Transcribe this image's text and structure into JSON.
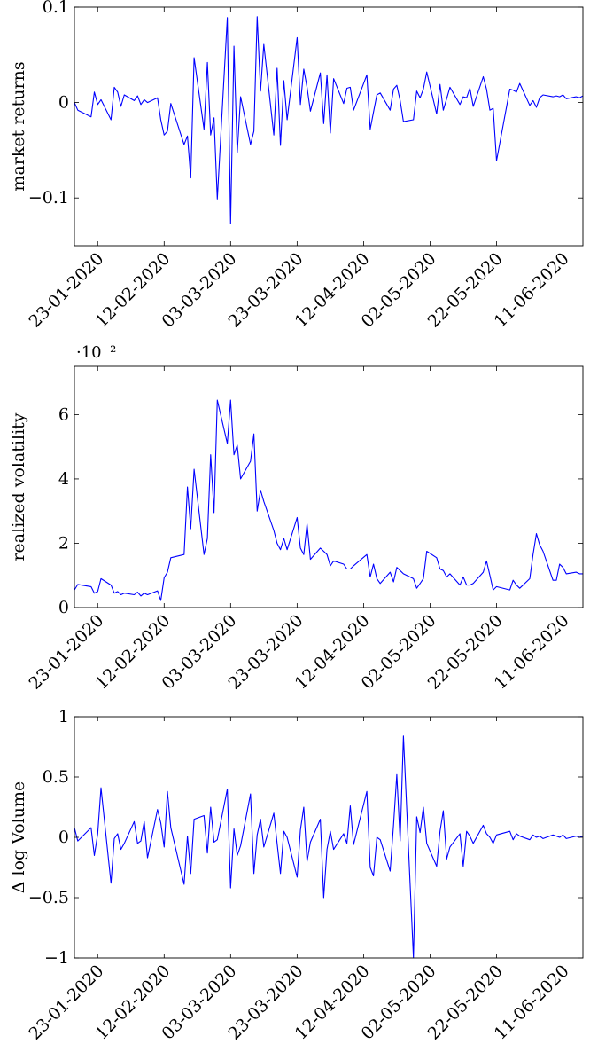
{
  "chart_data": [
    {
      "type": "line",
      "ylabel": "market returns",
      "y_scale_note": "",
      "ylim": [
        -0.15,
        0.1
      ],
      "yticks": [
        -0.1,
        0,
        0.1
      ],
      "ytick_labels": [
        "−0.1",
        "0",
        "0.1"
      ],
      "xlim": [
        "2020-01-16",
        "2020-06-17"
      ],
      "xticks": [
        "2020-01-23",
        "2020-02-12",
        "2020-03-03",
        "2020-03-23",
        "2020-04-12",
        "2020-05-02",
        "2020-05-22",
        "2020-06-11"
      ],
      "xtick_labels": [
        "23-01-2020",
        "12-02-2020",
        "03-03-2020",
        "23-03-2020",
        "12-04-2020",
        "02-05-2020",
        "22-05-2020",
        "11-06-2020"
      ],
      "grid": false,
      "line_color": "#0000ff",
      "series": [
        {
          "x": [
            "2020-01-16",
            "2020-01-17",
            "2020-01-21",
            "2020-01-22",
            "2020-01-23",
            "2020-01-24",
            "2020-01-27",
            "2020-01-28",
            "2020-01-29",
            "2020-01-30",
            "2020-01-31",
            "2020-02-03",
            "2020-02-04",
            "2020-02-05",
            "2020-02-06",
            "2020-02-07",
            "2020-02-10",
            "2020-02-11",
            "2020-02-12",
            "2020-02-13",
            "2020-02-14",
            "2020-02-18",
            "2020-02-19",
            "2020-02-20",
            "2020-02-21",
            "2020-02-24",
            "2020-02-25",
            "2020-02-26",
            "2020-02-27",
            "2020-02-28",
            "2020-03-02",
            "2020-03-03",
            "2020-03-04",
            "2020-03-05",
            "2020-03-06",
            "2020-03-09",
            "2020-03-10",
            "2020-03-11",
            "2020-03-12",
            "2020-03-13",
            "2020-03-16",
            "2020-03-17",
            "2020-03-18",
            "2020-03-19",
            "2020-03-20",
            "2020-03-23",
            "2020-03-24",
            "2020-03-25",
            "2020-03-26",
            "2020-03-27",
            "2020-03-30",
            "2020-03-31",
            "2020-04-01",
            "2020-04-02",
            "2020-04-03",
            "2020-04-06",
            "2020-04-07",
            "2020-04-08",
            "2020-04-09",
            "2020-04-13",
            "2020-04-14",
            "2020-04-15",
            "2020-04-16",
            "2020-04-17",
            "2020-04-20",
            "2020-04-21",
            "2020-04-22",
            "2020-04-23",
            "2020-04-24",
            "2020-04-27",
            "2020-04-28",
            "2020-04-29",
            "2020-04-30",
            "2020-05-01",
            "2020-05-04",
            "2020-05-05",
            "2020-05-06",
            "2020-05-07",
            "2020-05-08",
            "2020-05-11",
            "2020-05-12",
            "2020-05-13",
            "2020-05-14",
            "2020-05-15",
            "2020-05-18",
            "2020-05-19",
            "2020-05-20",
            "2020-05-21",
            "2020-05-22",
            "2020-05-26",
            "2020-05-27",
            "2020-05-28",
            "2020-05-29",
            "2020-06-01",
            "2020-06-02",
            "2020-06-03",
            "2020-06-04",
            "2020-06-05",
            "2020-06-08",
            "2020-06-09",
            "2020-06-10",
            "2020-06-11",
            "2020-06-12",
            "2020-06-15",
            "2020-06-16",
            "2020-06-17"
          ],
          "y": [
            0.0,
            -0.008,
            -0.015,
            0.011,
            -0.002,
            0.003,
            -0.018,
            0.016,
            0.011,
            -0.004,
            0.008,
            0.002,
            0.007,
            -0.002,
            0.003,
            0.0,
            0.005,
            -0.018,
            -0.034,
            -0.03,
            -0.001,
            -0.044,
            -0.035,
            -0.079,
            0.047,
            -0.028,
            0.042,
            -0.034,
            -0.016,
            -0.101,
            0.089,
            -0.127,
            0.059,
            -0.053,
            0.006,
            -0.044,
            -0.03,
            0.09,
            0.012,
            0.061,
            -0.034,
            0.036,
            -0.045,
            0.023,
            -0.018,
            0.068,
            -0.002,
            0.035,
            0.016,
            -0.009,
            0.031,
            -0.022,
            0.029,
            -0.032,
            0.025,
            -0.001,
            0.015,
            0.016,
            -0.008,
            0.029,
            -0.028,
            -0.01,
            0.008,
            0.01,
            -0.008,
            0.014,
            0.018,
            0.002,
            -0.02,
            -0.018,
            0.012,
            0.005,
            0.014,
            0.032,
            -0.012,
            0.019,
            -0.008,
            0.004,
            0.016,
            -0.002,
            0.006,
            0.005,
            0.015,
            -0.004,
            0.027,
            0.014,
            -0.008,
            -0.006,
            -0.061,
            0.014,
            0.013,
            0.011,
            0.02,
            -0.003,
            0.002,
            -0.005,
            0.005,
            0.008,
            0.006,
            0.007,
            0.006,
            0.008,
            0.004,
            0.006,
            0.005,
            0.007
          ]
        }
      ]
    },
    {
      "type": "line",
      "ylabel": "realized volatility",
      "y_scale_note": "·10⁻²",
      "ylim": [
        0,
        7.5
      ],
      "yticks": [
        0,
        2,
        4,
        6
      ],
      "ytick_labels": [
        "0",
        "2",
        "4",
        "6"
      ],
      "xlim": [
        "2020-01-16",
        "2020-06-17"
      ],
      "xticks": [
        "2020-01-23",
        "2020-02-12",
        "2020-03-03",
        "2020-03-23",
        "2020-04-12",
        "2020-05-02",
        "2020-05-22",
        "2020-06-11"
      ],
      "xtick_labels": [
        "23-01-2020",
        "12-02-2020",
        "03-03-2020",
        "23-03-2020",
        "12-04-2020",
        "02-05-2020",
        "22-05-2020",
        "11-06-2020"
      ],
      "grid": false,
      "line_color": "#0000ff",
      "series": [
        {
          "x": [
            "2020-01-16",
            "2020-01-17",
            "2020-01-21",
            "2020-01-22",
            "2020-01-23",
            "2020-01-24",
            "2020-01-27",
            "2020-01-28",
            "2020-01-29",
            "2020-01-30",
            "2020-01-31",
            "2020-02-03",
            "2020-02-04",
            "2020-02-05",
            "2020-02-06",
            "2020-02-07",
            "2020-02-10",
            "2020-02-11",
            "2020-02-12",
            "2020-02-13",
            "2020-02-14",
            "2020-02-18",
            "2020-02-19",
            "2020-02-20",
            "2020-02-21",
            "2020-02-24",
            "2020-02-25",
            "2020-02-26",
            "2020-02-27",
            "2020-02-28",
            "2020-03-02",
            "2020-03-03",
            "2020-03-04",
            "2020-03-05",
            "2020-03-06",
            "2020-03-09",
            "2020-03-10",
            "2020-03-11",
            "2020-03-12",
            "2020-03-13",
            "2020-03-16",
            "2020-03-17",
            "2020-03-18",
            "2020-03-19",
            "2020-03-20",
            "2020-03-23",
            "2020-03-24",
            "2020-03-25",
            "2020-03-26",
            "2020-03-27",
            "2020-03-30",
            "2020-03-31",
            "2020-04-01",
            "2020-04-02",
            "2020-04-03",
            "2020-04-06",
            "2020-04-07",
            "2020-04-08",
            "2020-04-09",
            "2020-04-13",
            "2020-04-14",
            "2020-04-15",
            "2020-04-16",
            "2020-04-17",
            "2020-04-20",
            "2020-04-21",
            "2020-04-22",
            "2020-04-23",
            "2020-04-24",
            "2020-04-27",
            "2020-04-28",
            "2020-04-29",
            "2020-04-30",
            "2020-05-01",
            "2020-05-04",
            "2020-05-05",
            "2020-05-06",
            "2020-05-07",
            "2020-05-08",
            "2020-05-11",
            "2020-05-12",
            "2020-05-13",
            "2020-05-14",
            "2020-05-15",
            "2020-05-18",
            "2020-05-19",
            "2020-05-20",
            "2020-05-21",
            "2020-05-22",
            "2020-05-26",
            "2020-05-27",
            "2020-05-28",
            "2020-05-29",
            "2020-06-01",
            "2020-06-02",
            "2020-06-03",
            "2020-06-04",
            "2020-06-05",
            "2020-06-08",
            "2020-06-09",
            "2020-06-10",
            "2020-06-11",
            "2020-06-12",
            "2020-06-15",
            "2020-06-16",
            "2020-06-17"
          ],
          "y": [
            0.55,
            0.72,
            0.65,
            0.45,
            0.5,
            0.9,
            0.7,
            0.45,
            0.5,
            0.4,
            0.45,
            0.4,
            0.48,
            0.36,
            0.45,
            0.4,
            0.52,
            0.22,
            0.93,
            1.1,
            1.55,
            1.65,
            3.75,
            2.45,
            4.3,
            1.65,
            2.15,
            4.75,
            2.95,
            6.45,
            5.1,
            6.45,
            4.75,
            5.05,
            4.0,
            4.55,
            5.4,
            3.0,
            3.65,
            3.3,
            2.4,
            2.0,
            1.8,
            2.15,
            1.8,
            2.8,
            1.85,
            1.65,
            2.6,
            1.5,
            1.85,
            1.75,
            1.65,
            1.3,
            1.45,
            1.35,
            1.2,
            1.2,
            1.3,
            1.65,
            0.95,
            1.35,
            0.9,
            0.75,
            1.1,
            0.8,
            1.25,
            1.15,
            1.05,
            0.9,
            0.6,
            0.75,
            0.9,
            1.75,
            1.55,
            1.2,
            1.15,
            0.95,
            1.05,
            0.7,
            0.95,
            0.7,
            0.7,
            0.75,
            1.1,
            1.45,
            1.0,
            0.55,
            0.65,
            0.55,
            0.85,
            0.7,
            0.6,
            0.9,
            1.65,
            2.3,
            1.95,
            1.75,
            0.85,
            0.85,
            1.35,
            1.25,
            1.05,
            1.1,
            1.05,
            1.05
          ]
        }
      ]
    },
    {
      "type": "line",
      "ylabel": "Δ log Volume",
      "y_scale_note": "",
      "ylim": [
        -1,
        1
      ],
      "yticks": [
        -1,
        -0.5,
        0,
        0.5,
        1
      ],
      "ytick_labels": [
        "−1",
        "−0.5",
        "0",
        "0.5",
        "1"
      ],
      "xlim": [
        "2020-01-16",
        "2020-06-17"
      ],
      "xticks": [
        "2020-01-23",
        "2020-02-12",
        "2020-03-03",
        "2020-03-23",
        "2020-04-12",
        "2020-05-02",
        "2020-05-22",
        "2020-06-11"
      ],
      "xtick_labels": [
        "23-01-2020",
        "12-02-2020",
        "03-03-2020",
        "23-03-2020",
        "12-04-2020",
        "02-05-2020",
        "22-05-2020",
        "11-06-2020"
      ],
      "grid": false,
      "line_color": "#0000ff",
      "series": [
        {
          "x": [
            "2020-01-16",
            "2020-01-17",
            "2020-01-21",
            "2020-01-22",
            "2020-01-23",
            "2020-01-24",
            "2020-01-27",
            "2020-01-28",
            "2020-01-29",
            "2020-01-30",
            "2020-01-31",
            "2020-02-03",
            "2020-02-04",
            "2020-02-05",
            "2020-02-06",
            "2020-02-07",
            "2020-02-10",
            "2020-02-11",
            "2020-02-12",
            "2020-02-13",
            "2020-02-14",
            "2020-02-18",
            "2020-02-19",
            "2020-02-20",
            "2020-02-21",
            "2020-02-24",
            "2020-02-25",
            "2020-02-26",
            "2020-02-27",
            "2020-02-28",
            "2020-03-02",
            "2020-03-03",
            "2020-03-04",
            "2020-03-05",
            "2020-03-06",
            "2020-03-09",
            "2020-03-10",
            "2020-03-11",
            "2020-03-12",
            "2020-03-13",
            "2020-03-16",
            "2020-03-17",
            "2020-03-18",
            "2020-03-19",
            "2020-03-20",
            "2020-03-23",
            "2020-03-24",
            "2020-03-25",
            "2020-03-26",
            "2020-03-27",
            "2020-03-30",
            "2020-03-31",
            "2020-04-01",
            "2020-04-02",
            "2020-04-03",
            "2020-04-06",
            "2020-04-07",
            "2020-04-08",
            "2020-04-09",
            "2020-04-13",
            "2020-04-14",
            "2020-04-15",
            "2020-04-16",
            "2020-04-17",
            "2020-04-20",
            "2020-04-21",
            "2020-04-22",
            "2020-04-23",
            "2020-04-24",
            "2020-04-27",
            "2020-04-28",
            "2020-04-29",
            "2020-04-30",
            "2020-05-01",
            "2020-05-04",
            "2020-05-05",
            "2020-05-06",
            "2020-05-07",
            "2020-05-08",
            "2020-05-11",
            "2020-05-12",
            "2020-05-13",
            "2020-05-14",
            "2020-05-15",
            "2020-05-18",
            "2020-05-19",
            "2020-05-20",
            "2020-05-21",
            "2020-05-22",
            "2020-05-26",
            "2020-05-27",
            "2020-05-28",
            "2020-05-29",
            "2020-06-01",
            "2020-06-02",
            "2020-06-03",
            "2020-06-04",
            "2020-06-05",
            "2020-06-08",
            "2020-06-09",
            "2020-06-10",
            "2020-06-11",
            "2020-06-12",
            "2020-06-15",
            "2020-06-16",
            "2020-06-17"
          ],
          "y": [
            0.08,
            -0.03,
            0.08,
            -0.15,
            0.03,
            0.41,
            -0.38,
            -0.01,
            0.03,
            -0.1,
            -0.05,
            0.13,
            -0.05,
            -0.03,
            0.13,
            -0.17,
            0.23,
            0.12,
            -0.08,
            0.38,
            0.08,
            -0.39,
            0.01,
            -0.3,
            0.15,
            0.18,
            -0.13,
            0.25,
            -0.04,
            -0.02,
            0.4,
            -0.42,
            0.07,
            -0.15,
            -0.07,
            0.36,
            -0.3,
            0.02,
            0.15,
            -0.08,
            0.2,
            -0.05,
            -0.3,
            0.05,
            0.0,
            -0.33,
            0.06,
            0.25,
            -0.2,
            -0.04,
            0.15,
            -0.5,
            -0.1,
            0.05,
            -0.1,
            0.03,
            -0.05,
            0.26,
            -0.06,
            0.38,
            -0.25,
            -0.32,
            0.0,
            -0.02,
            -0.28,
            0.1,
            0.52,
            -0.03,
            0.84,
            -1.0,
            0.17,
            0.04,
            0.25,
            -0.05,
            -0.24,
            0.05,
            0.22,
            -0.18,
            -0.08,
            0.03,
            -0.24,
            0.05,
            0.01,
            -0.05,
            0.1,
            0.03,
            0.0,
            -0.05,
            0.02,
            0.05,
            -0.02,
            0.03,
            0.01,
            -0.02,
            0.02,
            0.0,
            0.01,
            -0.01,
            0.02,
            0.01,
            0.0,
            0.02,
            -0.01,
            0.01,
            0.0,
            0.01
          ]
        }
      ]
    }
  ]
}
